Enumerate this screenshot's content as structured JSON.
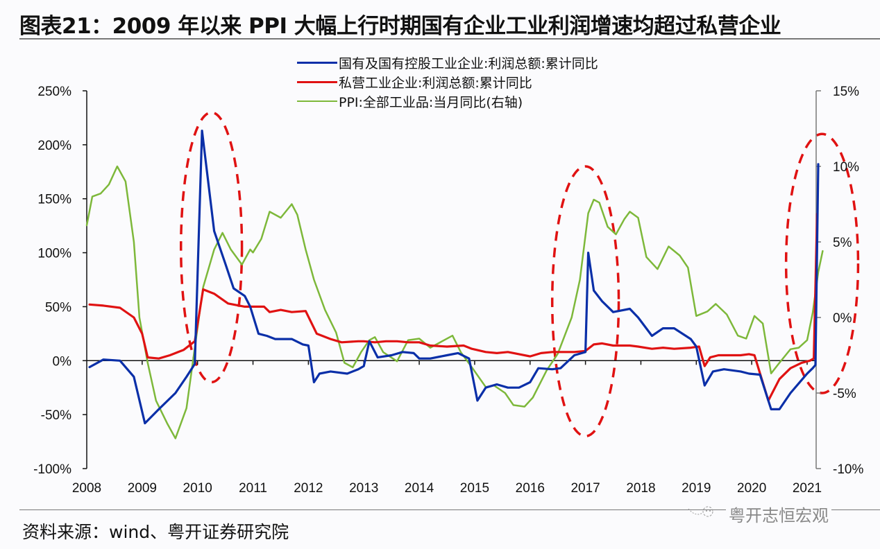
{
  "title": "图表21：2009 年以来 PPI 大幅上行时期国有企业工业利润增速均超过私营企业",
  "source": "资料来源：wind、粤开证券研究院",
  "watermark": "粤开志恒宏观",
  "chart_data": {
    "type": "line",
    "title": "图表21：2009 年以来 PPI 大幅上行时期国有企业工业利润增速均超过私营企业",
    "xlabel": "",
    "ylabel_left": "",
    "ylabel_right": "",
    "x_ticks": [
      "2008",
      "2009",
      "2010",
      "2011",
      "2012",
      "2013",
      "2014",
      "2015",
      "2016",
      "2017",
      "2018",
      "2019",
      "2020",
      "2021"
    ],
    "xlim": [
      2008,
      2021.1
    ],
    "y_left": {
      "ticks": [
        "250%",
        "200%",
        "150%",
        "100%",
        "50%",
        "0%",
        "-50%",
        "-100%"
      ],
      "values": [
        250,
        200,
        150,
        100,
        50,
        0,
        -50,
        -100
      ],
      "ylim": [
        -100,
        250
      ]
    },
    "y_right": {
      "ticks": [
        "15%",
        "10%",
        "5%",
        "0%",
        "-5%",
        "-10%"
      ],
      "values": [
        15,
        10,
        5,
        0,
        -5,
        -10
      ],
      "ylim": [
        -10,
        15
      ]
    },
    "legend_position": "top-center",
    "grid": false,
    "series": [
      {
        "name": "国有及国有控股工业企业:利润总额:累计同比",
        "axis": "left",
        "color": "#0a2fa8",
        "points": [
          [
            2008.05,
            -6
          ],
          [
            2008.3,
            1
          ],
          [
            2008.6,
            0
          ],
          [
            2008.85,
            -15
          ],
          [
            2009.05,
            -58
          ],
          [
            2009.3,
            -45
          ],
          [
            2009.6,
            -30
          ],
          [
            2009.8,
            -15
          ],
          [
            2009.95,
            -3
          ],
          [
            2010.08,
            213
          ],
          [
            2010.3,
            120
          ],
          [
            2010.5,
            90
          ],
          [
            2010.65,
            67
          ],
          [
            2010.85,
            60
          ],
          [
            2010.95,
            50
          ],
          [
            2011.1,
            25
          ],
          [
            2011.25,
            23
          ],
          [
            2011.4,
            20
          ],
          [
            2011.7,
            20
          ],
          [
            2011.9,
            15
          ],
          [
            2012.0,
            14
          ],
          [
            2012.1,
            -20
          ],
          [
            2012.2,
            -12
          ],
          [
            2012.4,
            -10
          ],
          [
            2012.7,
            -12
          ],
          [
            2012.9,
            -8
          ],
          [
            2013.0,
            -5
          ],
          [
            2013.1,
            18
          ],
          [
            2013.25,
            3
          ],
          [
            2013.5,
            5
          ],
          [
            2013.7,
            8
          ],
          [
            2013.9,
            7
          ],
          [
            2014.0,
            2
          ],
          [
            2014.2,
            2
          ],
          [
            2014.5,
            5
          ],
          [
            2014.7,
            7
          ],
          [
            2014.9,
            2
          ],
          [
            2015.05,
            -37
          ],
          [
            2015.2,
            -25
          ],
          [
            2015.4,
            -22
          ],
          [
            2015.6,
            -25
          ],
          [
            2015.8,
            -25
          ],
          [
            2016.0,
            -20
          ],
          [
            2016.15,
            -7
          ],
          [
            2016.4,
            -8
          ],
          [
            2016.55,
            -7
          ],
          [
            2016.8,
            5
          ],
          [
            2017.0,
            8
          ],
          [
            2017.05,
            100
          ],
          [
            2017.15,
            65
          ],
          [
            2017.3,
            55
          ],
          [
            2017.5,
            45
          ],
          [
            2017.8,
            48
          ],
          [
            2017.95,
            40
          ],
          [
            2018.2,
            23
          ],
          [
            2018.4,
            30
          ],
          [
            2018.6,
            30
          ],
          [
            2018.9,
            20
          ],
          [
            2019.0,
            13
          ],
          [
            2019.15,
            -23
          ],
          [
            2019.3,
            -10
          ],
          [
            2019.5,
            -8
          ],
          [
            2019.8,
            -10
          ],
          [
            2019.95,
            -12
          ],
          [
            2020.15,
            -13
          ],
          [
            2020.35,
            -45
          ],
          [
            2020.5,
            -45
          ],
          [
            2020.7,
            -30
          ],
          [
            2020.9,
            -18
          ],
          [
            2021.0,
            -12
          ],
          [
            2021.1,
            -7
          ],
          [
            2021.15,
            -4
          ],
          [
            2021.2,
            182
          ]
        ]
      },
      {
        "name": "私营工业企业:利润总额:累计同比",
        "axis": "left",
        "color": "#e01212",
        "points": [
          [
            2008.05,
            52
          ],
          [
            2008.3,
            51
          ],
          [
            2008.6,
            49
          ],
          [
            2008.85,
            40
          ],
          [
            2009.0,
            25
          ],
          [
            2009.1,
            3
          ],
          [
            2009.3,
            2
          ],
          [
            2009.5,
            5
          ],
          [
            2009.75,
            10
          ],
          [
            2009.95,
            18
          ],
          [
            2010.1,
            66
          ],
          [
            2010.3,
            62
          ],
          [
            2010.55,
            53
          ],
          [
            2010.85,
            50
          ],
          [
            2011.0,
            50
          ],
          [
            2011.2,
            50
          ],
          [
            2011.3,
            45
          ],
          [
            2011.5,
            47
          ],
          [
            2011.7,
            45
          ],
          [
            2011.95,
            46
          ],
          [
            2012.15,
            25
          ],
          [
            2012.4,
            20
          ],
          [
            2012.6,
            17
          ],
          [
            2012.9,
            18
          ],
          [
            2013.0,
            18
          ],
          [
            2013.2,
            17
          ],
          [
            2013.4,
            18
          ],
          [
            2013.6,
            18
          ],
          [
            2013.8,
            17
          ],
          [
            2014.0,
            17
          ],
          [
            2014.2,
            14
          ],
          [
            2014.5,
            13
          ],
          [
            2014.8,
            14
          ],
          [
            2014.95,
            11
          ],
          [
            2015.2,
            8
          ],
          [
            2015.4,
            7
          ],
          [
            2015.6,
            8
          ],
          [
            2015.8,
            6
          ],
          [
            2016.0,
            4
          ],
          [
            2016.2,
            7
          ],
          [
            2016.4,
            8
          ],
          [
            2016.6,
            8
          ],
          [
            2016.8,
            8
          ],
          [
            2017.0,
            9
          ],
          [
            2017.15,
            15
          ],
          [
            2017.3,
            16
          ],
          [
            2017.5,
            14
          ],
          [
            2017.8,
            14
          ],
          [
            2017.95,
            13
          ],
          [
            2018.2,
            11
          ],
          [
            2018.4,
            12
          ],
          [
            2018.6,
            11
          ],
          [
            2018.9,
            12
          ],
          [
            2019.05,
            13
          ],
          [
            2019.15,
            -5
          ],
          [
            2019.25,
            3
          ],
          [
            2019.4,
            5
          ],
          [
            2019.6,
            5
          ],
          [
            2019.8,
            5
          ],
          [
            2019.95,
            6
          ],
          [
            2020.05,
            5
          ],
          [
            2020.3,
            -37
          ],
          [
            2020.5,
            -17
          ],
          [
            2020.7,
            -7
          ],
          [
            2020.9,
            -2
          ],
          [
            2021.05,
            0
          ],
          [
            2021.12,
            2
          ],
          [
            2021.18,
            136
          ]
        ]
      },
      {
        "name": "PPI:全部工业品:当月同比(右轴)",
        "axis": "right",
        "color": "#7db83a",
        "points": [
          [
            2008.0,
            6.1
          ],
          [
            2008.1,
            8.0
          ],
          [
            2008.25,
            8.2
          ],
          [
            2008.4,
            8.8
          ],
          [
            2008.55,
            10.0
          ],
          [
            2008.7,
            9.0
          ],
          [
            2008.85,
            5.0
          ],
          [
            2008.95,
            0.0
          ],
          [
            2009.1,
            -3.0
          ],
          [
            2009.25,
            -5.5
          ],
          [
            2009.45,
            -7.0
          ],
          [
            2009.6,
            -8.0
          ],
          [
            2009.8,
            -6.0
          ],
          [
            2009.95,
            -2.0
          ],
          [
            2010.1,
            2.0
          ],
          [
            2010.3,
            4.5
          ],
          [
            2010.45,
            5.6
          ],
          [
            2010.6,
            4.5
          ],
          [
            2010.8,
            3.5
          ],
          [
            2010.95,
            4.5
          ],
          [
            2011.0,
            4.3
          ],
          [
            2011.15,
            5.2
          ],
          [
            2011.3,
            7.0
          ],
          [
            2011.5,
            6.6
          ],
          [
            2011.7,
            7.5
          ],
          [
            2011.8,
            6.8
          ],
          [
            2011.95,
            4.5
          ],
          [
            2012.1,
            2.5
          ],
          [
            2012.3,
            0.5
          ],
          [
            2012.5,
            -1.0
          ],
          [
            2012.65,
            -3.0
          ],
          [
            2012.8,
            -3.3
          ],
          [
            2012.95,
            -2.3
          ],
          [
            2013.1,
            -1.5
          ],
          [
            2013.2,
            -1.3
          ],
          [
            2013.35,
            -2.3
          ],
          [
            2013.6,
            -2.9
          ],
          [
            2013.8,
            -1.5
          ],
          [
            2014.0,
            -1.4
          ],
          [
            2014.2,
            -2.0
          ],
          [
            2014.4,
            -1.6
          ],
          [
            2014.6,
            -1.2
          ],
          [
            2014.75,
            -2.3
          ],
          [
            2014.95,
            -3.3
          ],
          [
            2015.2,
            -4.6
          ],
          [
            2015.35,
            -4.5
          ],
          [
            2015.55,
            -5.0
          ],
          [
            2015.7,
            -5.8
          ],
          [
            2015.9,
            -5.9
          ],
          [
            2016.05,
            -5.3
          ],
          [
            2016.3,
            -3.5
          ],
          [
            2016.5,
            -2.4
          ],
          [
            2016.75,
            0.0
          ],
          [
            2016.9,
            2.5
          ],
          [
            2017.05,
            6.9
          ],
          [
            2017.15,
            7.8
          ],
          [
            2017.25,
            7.6
          ],
          [
            2017.4,
            6.0
          ],
          [
            2017.55,
            5.5
          ],
          [
            2017.7,
            6.5
          ],
          [
            2017.8,
            7.0
          ],
          [
            2017.95,
            6.6
          ],
          [
            2018.1,
            4.0
          ],
          [
            2018.3,
            3.2
          ],
          [
            2018.5,
            4.7
          ],
          [
            2018.7,
            4.1
          ],
          [
            2018.85,
            3.3
          ],
          [
            2019.0,
            0.1
          ],
          [
            2019.2,
            0.4
          ],
          [
            2019.35,
            0.9
          ],
          [
            2019.55,
            0.2
          ],
          [
            2019.75,
            -1.2
          ],
          [
            2019.9,
            -1.4
          ],
          [
            2020.05,
            0.1
          ],
          [
            2020.2,
            -0.4
          ],
          [
            2020.35,
            -3.7
          ],
          [
            2020.5,
            -3.0
          ],
          [
            2020.7,
            -2.1
          ],
          [
            2020.85,
            -2.0
          ],
          [
            2021.0,
            -1.5
          ],
          [
            2021.1,
            0.3
          ],
          [
            2021.2,
            3.0
          ],
          [
            2021.28,
            4.4
          ]
        ]
      }
    ],
    "annotations": [
      {
        "type": "dashed-ellipse",
        "color": "#e01212",
        "x_center": 2010.25,
        "y_center_left": 105,
        "x_half": 0.55,
        "y_half_left": 125
      },
      {
        "type": "dashed-ellipse",
        "color": "#e01212",
        "x_center": 2017.0,
        "y_center_left": 55,
        "x_half": 0.6,
        "y_half_left": 125
      },
      {
        "type": "dashed-ellipse",
        "color": "#e01212",
        "x_center": 2021.27,
        "y_center_left": 90,
        "x_half": 0.65,
        "y_half_left": 120
      }
    ]
  }
}
